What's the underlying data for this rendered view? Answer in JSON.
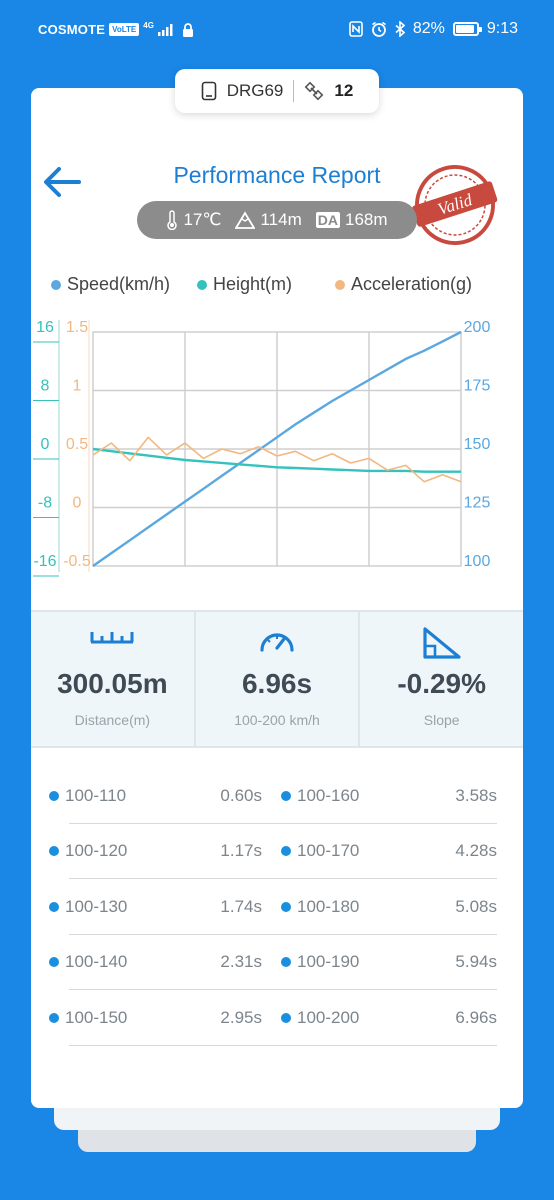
{
  "status_bar": {
    "carrier": "COSMOTE",
    "volte": "VoLTE",
    "network": "4G",
    "battery": "82%",
    "time": "9:13"
  },
  "device": {
    "name": "DRG69",
    "satellites": "12"
  },
  "header": {
    "title": "Performance Report",
    "stamp_text": "Valid"
  },
  "conditions": {
    "temperature": "17℃",
    "altitude": "114m",
    "da_label": "DA",
    "density_altitude": "168m"
  },
  "legend": {
    "speed": "Speed(km/h)",
    "height": "Height(m)",
    "acceleration": "Acceleration(g)"
  },
  "colors": {
    "speed": "#5ba7e0",
    "height": "#35c2bd",
    "acceleration": "#f2b880",
    "accent": "#1d7fd3"
  },
  "chart_data": {
    "type": "line",
    "x": [
      0,
      1,
      2,
      3,
      4,
      5,
      6,
      7,
      8,
      9,
      10,
      11,
      12,
      13,
      14,
      15,
      16,
      17,
      18,
      19,
      20
    ],
    "series": [
      {
        "name": "Speed(km/h)",
        "axis": "right",
        "values": [
          100,
          105.5,
          111,
          116.5,
          122,
          127.5,
          133,
          138.5,
          144,
          149.5,
          155,
          160.5,
          165.5,
          170.5,
          175,
          179.5,
          184,
          188.5,
          192,
          196,
          200
        ]
      },
      {
        "name": "Height(m)",
        "axis": "left-outer",
        "values": [
          0,
          -0.3,
          -0.6,
          -0.9,
          -1.2,
          -1.5,
          -1.7,
          -1.9,
          -2.1,
          -2.3,
          -2.5,
          -2.6,
          -2.7,
          -2.8,
          -2.9,
          -3.0,
          -3.0,
          -3.0,
          -3.1,
          -3.1,
          -3.1
        ]
      },
      {
        "name": "Acceleration(g)",
        "axis": "left-inner",
        "values": [
          0.45,
          0.55,
          0.4,
          0.6,
          0.45,
          0.55,
          0.42,
          0.5,
          0.46,
          0.52,
          0.44,
          0.48,
          0.4,
          0.46,
          0.38,
          0.42,
          0.32,
          0.36,
          0.22,
          0.28,
          0.22
        ]
      }
    ],
    "axes": {
      "left_outer": {
        "ticks": [
          "16",
          "8",
          "0",
          "-8",
          "-16"
        ],
        "range": [
          -16,
          16
        ]
      },
      "left_inner": {
        "ticks": [
          "1.5",
          "1",
          "0.5",
          "0",
          "-0.5"
        ],
        "range": [
          -0.5,
          1.5
        ]
      },
      "right": {
        "ticks": [
          "200",
          "175",
          "150",
          "125",
          "100"
        ],
        "range": [
          100,
          200
        ]
      }
    },
    "grid": true
  },
  "stats": [
    {
      "value": "300.05m",
      "label": "Distance(m)",
      "icon": "ruler-icon"
    },
    {
      "value": "6.96s",
      "label": "100-200 km/h",
      "icon": "speedometer-icon"
    },
    {
      "value": "-0.29%",
      "label": "Slope",
      "icon": "slope-icon"
    }
  ],
  "splits": [
    {
      "range": "100-110",
      "time": "0.60s"
    },
    {
      "range": "100-120",
      "time": "1.17s"
    },
    {
      "range": "100-130",
      "time": "1.74s"
    },
    {
      "range": "100-140",
      "time": "2.31s"
    },
    {
      "range": "100-150",
      "time": "2.95s"
    },
    {
      "range": "100-160",
      "time": "3.58s"
    },
    {
      "range": "100-170",
      "time": "4.28s"
    },
    {
      "range": "100-180",
      "time": "5.08s"
    },
    {
      "range": "100-190",
      "time": "5.94s"
    },
    {
      "range": "100-200",
      "time": "6.96s"
    }
  ]
}
